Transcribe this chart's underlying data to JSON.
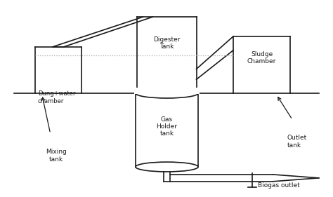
{
  "bg_color": "#ffffff",
  "line_color": "#1a1a1a",
  "dotted_color": "#aaaaaa",
  "labels": {
    "mixing_tank": "Mixing\ntank",
    "dung_water": "Dung+water\nchamber",
    "gas_holder": "Gas\nHolder\ntank",
    "digester": "Digester\nTank",
    "sludge": "Sludge\nChamber",
    "outlet_tank": "Outlet\ntank",
    "biogas_outlet": "Biogas outlet"
  },
  "figsize": [
    4.74,
    2.81
  ],
  "dpi": 100
}
